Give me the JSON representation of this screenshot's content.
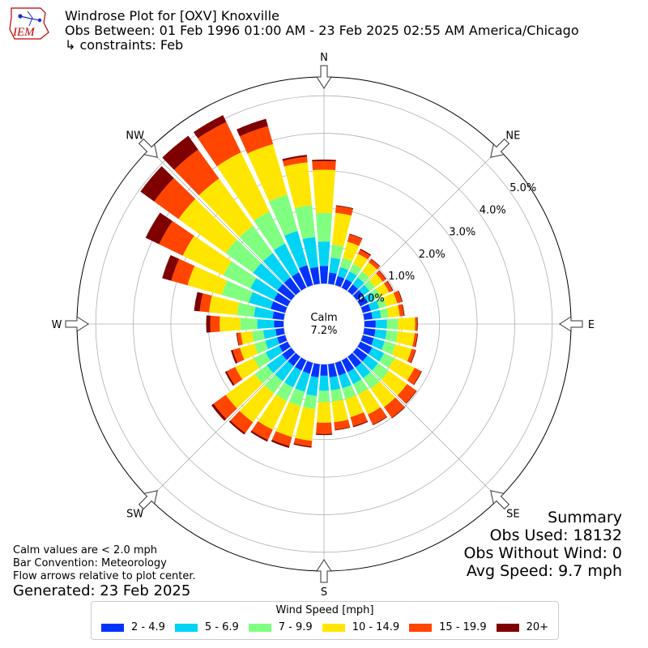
{
  "header": {
    "logo_text": "IEM",
    "title": "Windrose Plot for [OXV] Knoxville",
    "subtitle": "Obs Between: 01 Feb 1996 01:00 AM - 23 Feb 2025 02:55 AM America/Chicago",
    "constraints": "↳ constraints: Feb"
  },
  "chart_data": {
    "type": "windrose",
    "radial_unit": "percent",
    "rmax": 5.5,
    "radial_ticks": [
      "0.0%",
      "1.0%",
      "2.0%",
      "3.0%",
      "4.0%",
      "5.0%"
    ],
    "radial_tick_values": [
      0,
      1,
      2,
      3,
      4,
      5
    ],
    "direction_labels": [
      "N",
      "NE",
      "E",
      "SE",
      "S",
      "SW",
      "W",
      "NW"
    ],
    "calm_label": "Calm",
    "calm_value": "7.2%",
    "legend_title": "Wind Speed [mph]",
    "speed_bins": [
      {
        "label": "2 - 4.9",
        "color": "#0433ff"
      },
      {
        "label": "5 - 6.9",
        "color": "#00d4f5"
      },
      {
        "label": "7 - 9.9",
        "color": "#80ff80"
      },
      {
        "label": "10 - 14.9",
        "color": "#ffe600"
      },
      {
        "label": "15 - 19.9",
        "color": "#ff4500"
      },
      {
        "label": "20+",
        "color": "#7f0000"
      }
    ],
    "directions_deg": [
      0,
      10,
      20,
      30,
      40,
      50,
      60,
      70,
      80,
      90,
      100,
      110,
      120,
      130,
      140,
      150,
      160,
      170,
      180,
      190,
      200,
      210,
      220,
      230,
      240,
      250,
      260,
      270,
      280,
      290,
      300,
      310,
      320,
      330,
      340,
      350
    ],
    "cumulative_percent": [
      [
        0.47,
        1.12,
        1.88,
        3.03,
        3.26,
        3.3
      ],
      [
        0.3,
        0.7,
        1.05,
        1.9,
        2.08,
        2.1
      ],
      [
        0.25,
        0.5,
        0.75,
        1.2,
        1.4,
        1.42
      ],
      [
        0.25,
        0.48,
        0.7,
        1.0,
        1.12,
        1.15
      ],
      [
        0.22,
        0.45,
        0.65,
        0.95,
        1.05,
        1.07
      ],
      [
        0.22,
        0.42,
        0.6,
        0.85,
        0.95,
        0.97
      ],
      [
        0.22,
        0.42,
        0.6,
        0.85,
        0.95,
        0.97
      ],
      [
        0.22,
        0.45,
        0.65,
        0.95,
        1.08,
        1.1
      ],
      [
        0.22,
        0.45,
        0.65,
        0.95,
        1.06,
        1.08
      ],
      [
        0.3,
        0.6,
        0.9,
        1.35,
        1.4,
        1.42
      ],
      [
        0.3,
        0.6,
        0.9,
        1.35,
        1.42,
        1.44
      ],
      [
        0.3,
        0.6,
        0.9,
        1.35,
        1.45,
        1.47
      ],
      [
        0.35,
        0.7,
        1.0,
        1.6,
        1.8,
        1.82
      ],
      [
        0.35,
        0.7,
        1.05,
        1.65,
        1.95,
        1.97
      ],
      [
        0.35,
        0.7,
        1.05,
        1.65,
        2.0,
        2.02
      ],
      [
        0.35,
        0.7,
        1.0,
        1.6,
        1.9,
        1.92
      ],
      [
        0.35,
        0.7,
        1.0,
        1.5,
        1.75,
        1.78
      ],
      [
        0.35,
        0.7,
        1.0,
        1.55,
        1.75,
        1.77
      ],
      [
        0.3,
        0.7,
        1.0,
        1.55,
        1.85,
        1.88
      ],
      [
        0.35,
        0.85,
        1.2,
        2.05,
        2.2,
        2.23
      ],
      [
        0.3,
        0.8,
        1.2,
        2.05,
        2.3,
        2.35
      ],
      [
        0.3,
        0.8,
        1.2,
        2.05,
        2.35,
        2.4
      ],
      [
        0.3,
        0.8,
        1.2,
        2.15,
        2.5,
        2.55
      ],
      [
        0.3,
        0.8,
        1.2,
        2.15,
        2.55,
        2.62
      ],
      [
        0.25,
        0.65,
        1.0,
        1.55,
        1.8,
        1.85
      ],
      [
        0.22,
        0.55,
        0.85,
        1.25,
        1.45,
        1.5
      ],
      [
        0.22,
        0.55,
        0.85,
        1.15,
        1.25,
        1.27
      ],
      [
        0.25,
        0.7,
        1.15,
        1.7,
        1.95,
        2.06
      ],
      [
        0.3,
        0.8,
        1.25,
        2.0,
        2.25,
        2.4
      ],
      [
        0.4,
        1.0,
        1.75,
        2.7,
        3.15,
        3.4
      ],
      [
        0.4,
        1.1,
        1.9,
        3.1,
        3.8,
        4.2
      ],
      [
        0.45,
        1.25,
        2.15,
        3.7,
        4.5,
        4.95
      ],
      [
        0.45,
        1.25,
        2.15,
        3.7,
        4.65,
        5.1
      ],
      [
        0.45,
        1.3,
        2.25,
        4.0,
        4.9,
        5.1
      ],
      [
        0.55,
        1.5,
        2.5,
        3.9,
        4.4,
        4.6
      ],
      [
        0.45,
        1.25,
        2.1,
        3.25,
        3.4,
        3.45
      ]
    ]
  },
  "notes": {
    "line1": "Calm values are < 2.0 mph",
    "line2": "Bar Convention: Meteorology",
    "line3": "Flow arrows relative to plot center.",
    "generated": "Generated: 23 Feb 2025"
  },
  "summary": {
    "title": "Summary",
    "obs_used": "Obs Used: 18132",
    "obs_without_wind": "Obs Without Wind: 0",
    "avg_speed": "Avg Speed: 9.7 mph"
  }
}
